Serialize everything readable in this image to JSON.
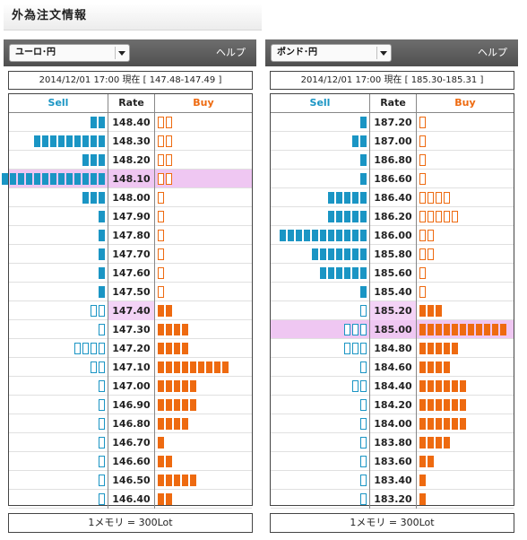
{
  "title": "外為注文情報",
  "header": {
    "sell": "Sell",
    "rate": "Rate",
    "buy": "Buy"
  },
  "colors": {
    "sell": "#1a95c4",
    "buy": "#ee6a10",
    "highlight": "#efc7f2"
  },
  "panels": [
    {
      "pair": "ユーロ･円",
      "help": "ヘルプ",
      "quote": "2014/12/01  17:00 現在 [ 147.48-147.49 ]",
      "current_rate": "147.40",
      "highlight_rate": "148.10",
      "footer": "1メモリ = 300Lot",
      "rows": [
        {
          "rate": "148.40",
          "sell": 2,
          "sell_filled": true,
          "buy": 2,
          "buy_filled": false
        },
        {
          "rate": "148.30",
          "sell": 9,
          "sell_filled": true,
          "buy": 2,
          "buy_filled": false
        },
        {
          "rate": "148.20",
          "sell": 3,
          "sell_filled": true,
          "buy": 2,
          "buy_filled": false
        },
        {
          "rate": "148.10",
          "sell": 13,
          "sell_filled": true,
          "buy": 2,
          "buy_filled": false
        },
        {
          "rate": "148.00",
          "sell": 3,
          "sell_filled": true,
          "buy": 1,
          "buy_filled": false
        },
        {
          "rate": "147.90",
          "sell": 1,
          "sell_filled": true,
          "buy": 1,
          "buy_filled": false
        },
        {
          "rate": "147.80",
          "sell": 1,
          "sell_filled": true,
          "buy": 1,
          "buy_filled": false
        },
        {
          "rate": "147.70",
          "sell": 1,
          "sell_filled": true,
          "buy": 1,
          "buy_filled": false
        },
        {
          "rate": "147.60",
          "sell": 1,
          "sell_filled": true,
          "buy": 1,
          "buy_filled": false
        },
        {
          "rate": "147.50",
          "sell": 1,
          "sell_filled": true,
          "buy": 1,
          "buy_filled": false
        },
        {
          "rate": "147.40",
          "sell": 2,
          "sell_filled": false,
          "buy": 2,
          "buy_filled": true
        },
        {
          "rate": "147.30",
          "sell": 1,
          "sell_filled": false,
          "buy": 4,
          "buy_filled": true
        },
        {
          "rate": "147.20",
          "sell": 4,
          "sell_filled": false,
          "buy": 4,
          "buy_filled": true
        },
        {
          "rate": "147.10",
          "sell": 2,
          "sell_filled": false,
          "buy": 9,
          "buy_filled": true
        },
        {
          "rate": "147.00",
          "sell": 1,
          "sell_filled": false,
          "buy": 5,
          "buy_filled": true
        },
        {
          "rate": "146.90",
          "sell": 1,
          "sell_filled": false,
          "buy": 5,
          "buy_filled": true
        },
        {
          "rate": "146.80",
          "sell": 1,
          "sell_filled": false,
          "buy": 4,
          "buy_filled": true
        },
        {
          "rate": "146.70",
          "sell": 1,
          "sell_filled": false,
          "buy": 1,
          "buy_filled": true
        },
        {
          "rate": "146.60",
          "sell": 1,
          "sell_filled": false,
          "buy": 2,
          "buy_filled": true
        },
        {
          "rate": "146.50",
          "sell": 1,
          "sell_filled": false,
          "buy": 5,
          "buy_filled": true
        },
        {
          "rate": "146.40",
          "sell": 1,
          "sell_filled": false,
          "buy": 2,
          "buy_filled": true
        }
      ]
    },
    {
      "pair": "ポンド･円",
      "help": "ヘルプ",
      "quote": "2014/12/01  17:00 現在 [ 185.30-185.31 ]",
      "current_rate": "185.20",
      "highlight_rate": "185.00",
      "footer": "1メモリ = 300Lot",
      "rows": [
        {
          "rate": "187.20",
          "sell": 1,
          "sell_filled": true,
          "buy": 1,
          "buy_filled": false
        },
        {
          "rate": "187.00",
          "sell": 2,
          "sell_filled": true,
          "buy": 1,
          "buy_filled": false
        },
        {
          "rate": "186.80",
          "sell": 1,
          "sell_filled": true,
          "buy": 1,
          "buy_filled": false
        },
        {
          "rate": "186.60",
          "sell": 1,
          "sell_filled": true,
          "buy": 1,
          "buy_filled": false
        },
        {
          "rate": "186.40",
          "sell": 5,
          "sell_filled": true,
          "buy": 4,
          "buy_filled": false
        },
        {
          "rate": "186.20",
          "sell": 5,
          "sell_filled": true,
          "buy": 5,
          "buy_filled": false
        },
        {
          "rate": "186.00",
          "sell": 11,
          "sell_filled": true,
          "buy": 2,
          "buy_filled": false
        },
        {
          "rate": "185.80",
          "sell": 7,
          "sell_filled": true,
          "buy": 2,
          "buy_filled": false
        },
        {
          "rate": "185.60",
          "sell": 6,
          "sell_filled": true,
          "buy": 1,
          "buy_filled": false
        },
        {
          "rate": "185.40",
          "sell": 1,
          "sell_filled": true,
          "buy": 1,
          "buy_filled": false
        },
        {
          "rate": "185.20",
          "sell": 1,
          "sell_filled": false,
          "buy": 3,
          "buy_filled": true
        },
        {
          "rate": "185.00",
          "sell": 3,
          "sell_filled": false,
          "buy": 11,
          "buy_filled": true
        },
        {
          "rate": "184.80",
          "sell": 3,
          "sell_filled": false,
          "buy": 5,
          "buy_filled": true
        },
        {
          "rate": "184.60",
          "sell": 1,
          "sell_filled": false,
          "buy": 4,
          "buy_filled": true
        },
        {
          "rate": "184.40",
          "sell": 2,
          "sell_filled": false,
          "buy": 6,
          "buy_filled": true
        },
        {
          "rate": "184.20",
          "sell": 1,
          "sell_filled": false,
          "buy": 6,
          "buy_filled": true
        },
        {
          "rate": "184.00",
          "sell": 1,
          "sell_filled": false,
          "buy": 6,
          "buy_filled": true
        },
        {
          "rate": "183.80",
          "sell": 1,
          "sell_filled": false,
          "buy": 4,
          "buy_filled": true
        },
        {
          "rate": "183.60",
          "sell": 1,
          "sell_filled": false,
          "buy": 2,
          "buy_filled": true
        },
        {
          "rate": "183.40",
          "sell": 1,
          "sell_filled": false,
          "buy": 1,
          "buy_filled": true
        },
        {
          "rate": "183.20",
          "sell": 1,
          "sell_filled": false,
          "buy": 1,
          "buy_filled": true
        }
      ]
    }
  ]
}
